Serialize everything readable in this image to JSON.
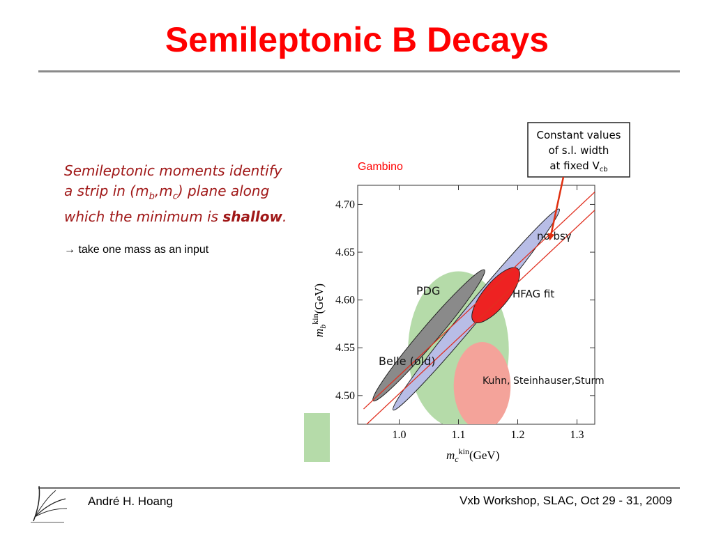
{
  "slide": {
    "title": "Semileptonic B Decays",
    "statement_pre": "Semileptonic moments identify a strip in (m",
    "statement_b": "b",
    "statement_mid": ",m",
    "statement_c": "c",
    "statement_post": ") plane along which the minimum is ",
    "statement_emph": "shallow",
    "statement_end": ".",
    "bullet": "→ take one mass as an input",
    "gambino": "Gambino",
    "author": "André H. Hoang",
    "event": "Vxb Workshop, SLAC, Oct 29 - 31, 2009"
  },
  "chart_data": {
    "type": "scatter",
    "xlabel_main": "m",
    "xlabel_sub": "c",
    "xlabel_sup": "kin",
    "xlabel_unit": "(GeV)",
    "ylabel_main": "m",
    "ylabel_sub": "b",
    "ylabel_sup": "kin",
    "ylabel_unit": "(GeV)",
    "xlim": [
      0.93,
      1.33
    ],
    "ylim": [
      4.47,
      4.72
    ],
    "x_ticks": [
      1.0,
      1.1,
      1.2,
      1.3
    ],
    "x_tick_labels": [
      "1.0",
      "1.1",
      "1.2",
      "1.3"
    ],
    "y_ticks": [
      4.5,
      4.55,
      4.6,
      4.65,
      4.7
    ],
    "y_tick_labels": [
      "4.50",
      "4.55",
      "4.60",
      "4.65",
      "4.70"
    ],
    "regions": [
      {
        "name": "PDG",
        "label": "PDG",
        "color": "#b5dba9",
        "cx": 1.1,
        "cy": 4.548,
        "rx": 0.085,
        "ry": 0.082,
        "angle": 0
      },
      {
        "name": "Kuhn",
        "label": "Kuhn, Steinhauser,Sturm",
        "color": "#f4a39a",
        "cx": 1.14,
        "cy": 4.51,
        "rx": 0.048,
        "ry": 0.046,
        "angle": 0
      },
      {
        "name": "no bsy",
        "label": "no bsγ",
        "color": "#b8bde6",
        "cx": 1.13,
        "cy": 4.59,
        "rx": 0.22,
        "ry": 0.009,
        "angle": 0.75
      },
      {
        "name": "Belle",
        "label": "Belle (old)",
        "color": "#8a8a8a",
        "cx": 1.05,
        "cy": 4.563,
        "rx": 0.145,
        "ry": 0.009,
        "angle": 0.73
      },
      {
        "name": "HFAG",
        "label": "HFAG fit",
        "color": "#ee2222",
        "cx": 1.163,
        "cy": 4.605,
        "rx": 0.058,
        "ry": 0.013,
        "angle": 0.75
      }
    ],
    "constant_lines": [
      {
        "x": [
          0.94,
          1.33
        ],
        "y": [
          4.486,
          4.713
        ]
      },
      {
        "x": [
          0.94,
          1.33
        ],
        "y": [
          4.467,
          4.694
        ]
      }
    ],
    "callout": {
      "line1": "Constant values",
      "line2": "of s.l. width",
      "line3_pre": "at fixed V",
      "line3_sub": "cb",
      "arrow_to": [
        1.255,
        4.665
      ]
    }
  }
}
